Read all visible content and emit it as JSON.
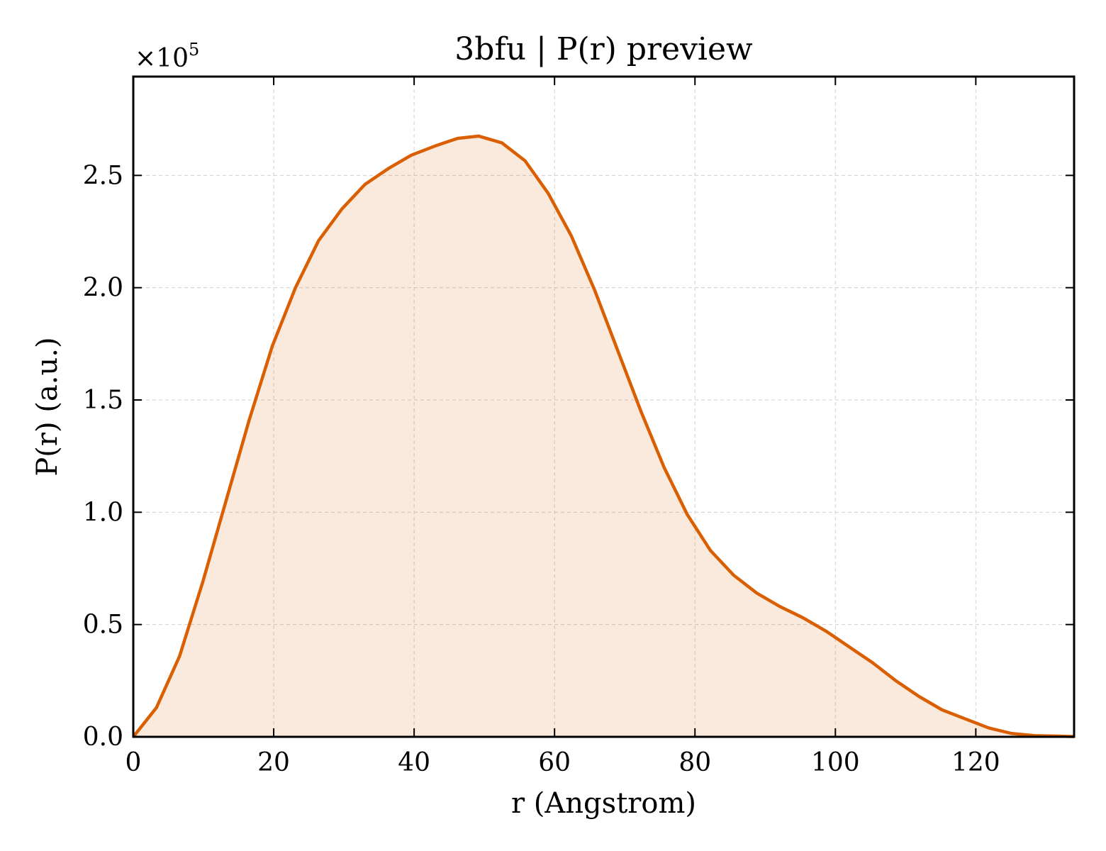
{
  "chart_data": {
    "type": "area",
    "title": "3bfu | P(r) preview",
    "xlabel": "r (Angstrom)",
    "ylabel": "P(r) (a.u.)",
    "y_offset_label": "×10",
    "y_offset_exponent": "5",
    "xlim": [
      0,
      134
    ],
    "ylim": [
      0,
      2.94
    ],
    "y_scale_factor": 100000,
    "x_ticks": [
      0,
      20,
      40,
      60,
      80,
      100,
      120
    ],
    "x_tick_labels": [
      "0",
      "20",
      "40",
      "60",
      "80",
      "100",
      "120"
    ],
    "y_ticks": [
      0.0,
      0.5,
      1.0,
      1.5,
      2.0,
      2.5
    ],
    "y_tick_labels": [
      "0.0",
      "0.5",
      "1.0",
      "1.5",
      "2.0",
      "2.5"
    ],
    "grid": true,
    "colors": {
      "line": "#d95f02",
      "fill": "#d95f02",
      "fill_opacity": 0.13
    },
    "series": [
      {
        "x": [
          0,
          3.3,
          6.6,
          9.9,
          13.2,
          16.5,
          19.8,
          23.1,
          26.4,
          29.7,
          33.0,
          36.3,
          39.6,
          42.9,
          46.2,
          49.2,
          52.5,
          55.8,
          59.1,
          62.4,
          65.7,
          69.0,
          72.3,
          75.6,
          78.9,
          82.2,
          85.5,
          88.8,
          92.1,
          95.4,
          98.7,
          102.0,
          105.3,
          108.6,
          111.9,
          115.2,
          118.5,
          121.8,
          125.1,
          128.4,
          131.7,
          134.0
        ],
        "values": [
          0.0,
          0.13,
          0.36,
          0.69,
          1.05,
          1.41,
          1.74,
          2.0,
          2.21,
          2.35,
          2.46,
          2.53,
          2.59,
          2.63,
          2.665,
          2.675,
          2.645,
          2.565,
          2.42,
          2.23,
          1.99,
          1.72,
          1.45,
          1.2,
          0.99,
          0.83,
          0.72,
          0.64,
          0.58,
          0.53,
          0.47,
          0.4,
          0.33,
          0.25,
          0.18,
          0.12,
          0.08,
          0.04,
          0.015,
          0.005,
          0.003,
          0.001
        ]
      }
    ]
  }
}
